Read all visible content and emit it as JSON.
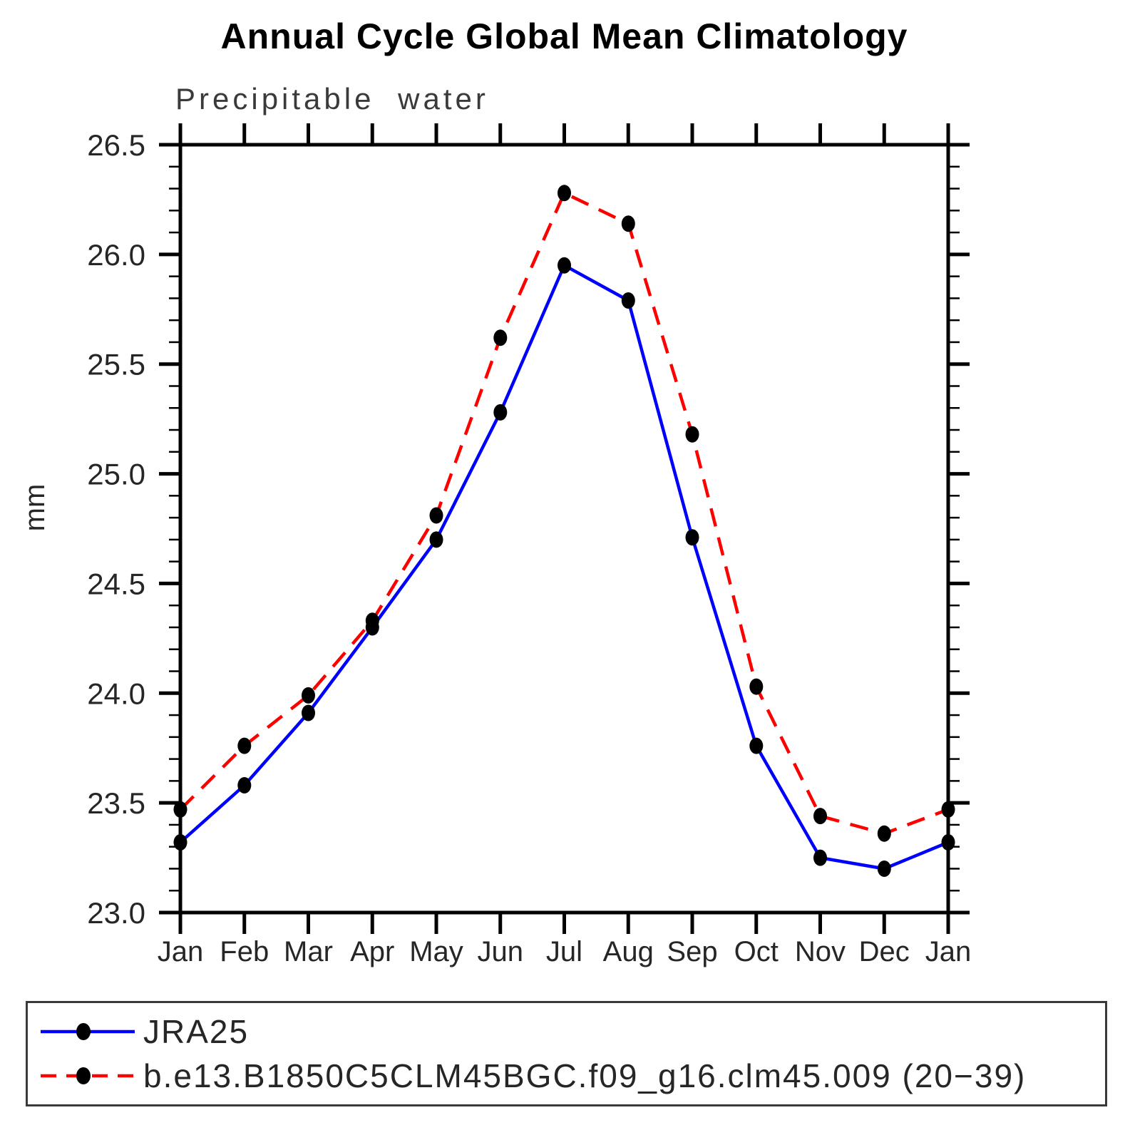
{
  "figure": {
    "title": "Annual Cycle Global Mean Climatology",
    "subtitle": "Precipitable water"
  },
  "chart_data": {
    "type": "line",
    "title": "Annual Cycle Global Mean Climatology",
    "subtitle": "Precipitable water",
    "xlabel": "",
    "ylabel": "mm",
    "categories": [
      "Jan",
      "Feb",
      "Mar",
      "Apr",
      "May",
      "Jun",
      "Jul",
      "Aug",
      "Sep",
      "Oct",
      "Nov",
      "Dec",
      "Jan"
    ],
    "ylim": [
      23.0,
      26.5
    ],
    "y_major_ticks": [
      23.0,
      23.5,
      24.0,
      24.5,
      25.0,
      25.5,
      26.0,
      26.5
    ],
    "y_major_tick_labels": [
      "23.0",
      "23.5",
      "24.0",
      "24.5",
      "25.0",
      "25.5",
      "26.0",
      "26.5"
    ],
    "y_minor_step": 0.1,
    "grid": false,
    "legend_position": "bottom-left-box",
    "axis_color": "#000000",
    "text_color": "#262626",
    "series": [
      {
        "name": "JRA25",
        "color": "#0000ff",
        "line_style": "solid",
        "marker": "filled-circle",
        "marker_color": "#000000",
        "values": [
          23.32,
          23.58,
          23.91,
          24.3,
          24.7,
          25.28,
          25.95,
          25.79,
          24.71,
          23.76,
          23.25,
          23.2,
          23.32
        ]
      },
      {
        "name": "b.e13.B1850C5CLM45BGC.f09_g16.clm45.009 (20−39)",
        "color": "#ff0000",
        "line_style": "dashed",
        "marker": "filled-circle",
        "marker_color": "#000000",
        "values": [
          23.47,
          23.76,
          23.99,
          24.33,
          24.81,
          25.62,
          26.28,
          26.14,
          25.18,
          24.03,
          23.44,
          23.36,
          23.47
        ]
      }
    ]
  }
}
